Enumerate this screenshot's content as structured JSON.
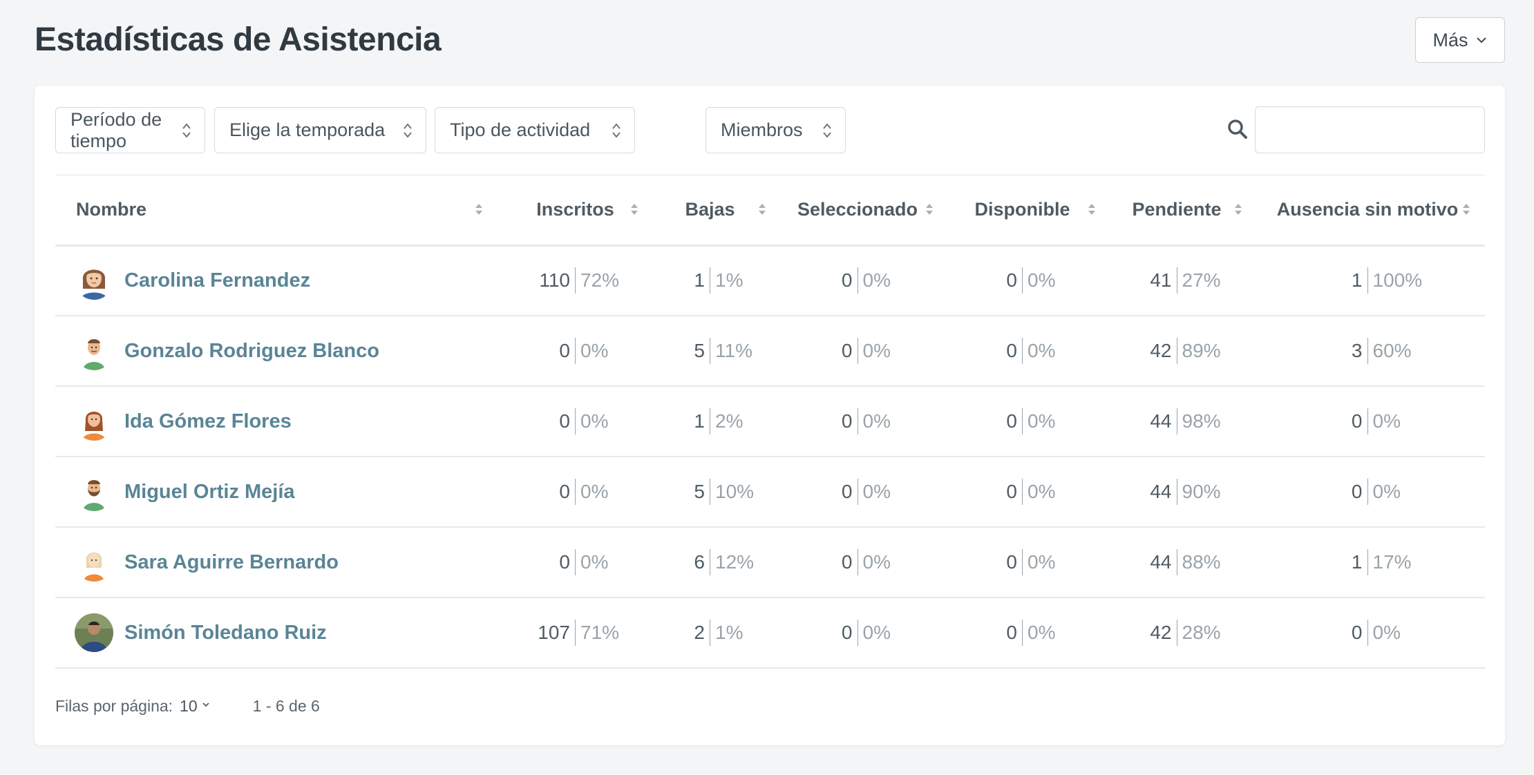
{
  "page": {
    "title": "Estadísticas de Asistencia",
    "more_label": "Más"
  },
  "filters": [
    {
      "label": "Período de tiempo"
    },
    {
      "label": "Elige la temporada"
    },
    {
      "label": "Tipo de actividad"
    },
    {
      "label": "Miembros"
    }
  ],
  "search": {
    "value": "",
    "placeholder": ""
  },
  "table": {
    "columns": [
      "Nombre",
      "Inscritos",
      "Bajas",
      "Seleccionado",
      "Disponible",
      "Pendiente",
      "Ausencia sin motivo"
    ],
    "rows": [
      {
        "name": "Carolina Fernandez",
        "avatar": "female-brown-hair-avatar-icon",
        "stats": [
          [
            "110",
            "72%"
          ],
          [
            "1",
            "1%"
          ],
          [
            "0",
            "0%"
          ],
          [
            "0",
            "0%"
          ],
          [
            "41",
            "27%"
          ],
          [
            "1",
            "100%"
          ]
        ]
      },
      {
        "name": "Gonzalo Rodriguez Blanco",
        "avatar": "male-avatar-icon",
        "stats": [
          [
            "0",
            "0%"
          ],
          [
            "5",
            "11%"
          ],
          [
            "0",
            "0%"
          ],
          [
            "0",
            "0%"
          ],
          [
            "42",
            "89%"
          ],
          [
            "3",
            "60%"
          ]
        ]
      },
      {
        "name": "Ida Gómez Flores",
        "avatar": "female-avatar-icon",
        "stats": [
          [
            "0",
            "0%"
          ],
          [
            "1",
            "2%"
          ],
          [
            "0",
            "0%"
          ],
          [
            "0",
            "0%"
          ],
          [
            "44",
            "98%"
          ],
          [
            "0",
            "0%"
          ]
        ]
      },
      {
        "name": "Miguel Ortiz Mejía",
        "avatar": "male-bearded-avatar-icon",
        "stats": [
          [
            "0",
            "0%"
          ],
          [
            "5",
            "10%"
          ],
          [
            "0",
            "0%"
          ],
          [
            "0",
            "0%"
          ],
          [
            "44",
            "90%"
          ],
          [
            "0",
            "0%"
          ]
        ]
      },
      {
        "name": "Sara Aguirre Bernardo",
        "avatar": "female-blonde-avatar-icon",
        "stats": [
          [
            "0",
            "0%"
          ],
          [
            "6",
            "12%"
          ],
          [
            "0",
            "0%"
          ],
          [
            "0",
            "0%"
          ],
          [
            "44",
            "88%"
          ],
          [
            "1",
            "17%"
          ]
        ]
      },
      {
        "name": "Simón Toledano Ruiz",
        "avatar": "photo-avatar",
        "stats": [
          [
            "107",
            "71%"
          ],
          [
            "2",
            "1%"
          ],
          [
            "0",
            "0%"
          ],
          [
            "0",
            "0%"
          ],
          [
            "42",
            "28%"
          ],
          [
            "0",
            "0%"
          ]
        ]
      }
    ]
  },
  "footer": {
    "rows_per_page_label": "Filas por página:",
    "rows_per_page_value": "10",
    "range": "1 - 6 de 6"
  },
  "colors": {
    "link": "#5a8595",
    "text": "#3d4a52",
    "muted": "#9aa3a9",
    "background": "#f4f5f7"
  }
}
